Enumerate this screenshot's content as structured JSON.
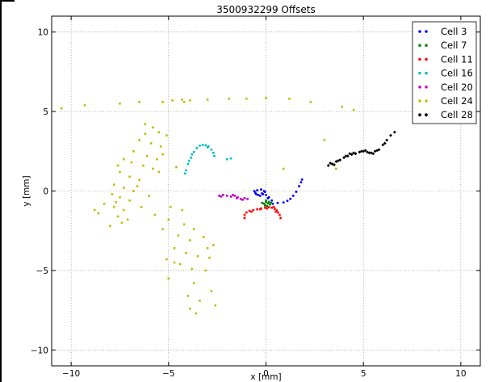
{
  "chart_data": {
    "type": "scatter",
    "title": "3500932299 Offsets",
    "xlabel": "x [mm]",
    "ylabel": "y [mm]",
    "xlim": [
      -11,
      11
    ],
    "ylim": [
      -11,
      11
    ],
    "xticks": [
      -10,
      -5,
      0,
      5,
      10
    ],
    "yticks": [
      -10,
      -5,
      0,
      5,
      10
    ],
    "xtick_labels": [
      "−10",
      "−5",
      "0",
      "5",
      "10"
    ],
    "ytick_labels": [
      "−10",
      "−5",
      "0",
      "5",
      "10"
    ],
    "grid": true,
    "legend": "top-right",
    "series": [
      {
        "name": "Cell 3",
        "color": "#0000ff",
        "marker": "circle",
        "points": [
          [
            -0.6,
            0.0
          ],
          [
            -0.5,
            -0.2
          ],
          [
            -0.3,
            -0.3
          ],
          [
            -0.15,
            -0.2
          ],
          [
            -0.1,
            0.0
          ],
          [
            -0.25,
            0.1
          ],
          [
            -0.45,
            0.05
          ],
          [
            -0.55,
            -0.1
          ],
          [
            -0.4,
            -0.25
          ],
          [
            -0.2,
            -0.15
          ],
          [
            -0.05,
            -0.05
          ],
          [
            0.0,
            -0.25
          ],
          [
            0.1,
            -0.45
          ],
          [
            0.3,
            -0.6
          ],
          [
            0.15,
            -0.4
          ],
          [
            0.35,
            -0.8
          ],
          [
            0.6,
            -0.75
          ],
          [
            0.9,
            -0.72
          ],
          [
            1.1,
            -0.62
          ],
          [
            1.25,
            -0.5
          ],
          [
            1.4,
            -0.3
          ],
          [
            1.55,
            -0.05
          ],
          [
            1.7,
            0.3
          ],
          [
            1.8,
            0.55
          ],
          [
            1.85,
            0.72
          ]
        ]
      },
      {
        "name": "Cell 7",
        "color": "#008000",
        "marker": "square",
        "points": [
          [
            -0.2,
            -0.75
          ],
          [
            -0.1,
            -0.8
          ],
          [
            0.0,
            -0.7
          ],
          [
            0.1,
            -0.78
          ],
          [
            0.2,
            -0.85
          ],
          [
            -0.05,
            -0.9
          ],
          [
            0.15,
            -0.68
          ],
          [
            0.05,
            -0.95
          ],
          [
            0.25,
            -0.75
          ],
          [
            0.0,
            -0.6
          ]
        ]
      },
      {
        "name": "Cell 11",
        "color": "#ff0000",
        "marker": "square",
        "points": [
          [
            -1.1,
            -1.7
          ],
          [
            -1.1,
            -1.5
          ],
          [
            -1.0,
            -1.35
          ],
          [
            -0.85,
            -1.25
          ],
          [
            -0.65,
            -1.2
          ],
          [
            -0.45,
            -1.15
          ],
          [
            -0.25,
            -1.1
          ],
          [
            -0.05,
            -1.05
          ],
          [
            0.15,
            -1.02
          ],
          [
            0.3,
            -1.05
          ],
          [
            0.45,
            -1.12
          ],
          [
            0.55,
            -1.22
          ],
          [
            0.62,
            -1.35
          ],
          [
            0.7,
            -1.5
          ],
          [
            0.75,
            -1.7
          ],
          [
            -0.3,
            -1.15
          ],
          [
            0.05,
            -1.1
          ],
          [
            0.5,
            -1.3
          ],
          [
            -0.75,
            -1.3
          ],
          [
            0.4,
            -1.0
          ]
        ]
      },
      {
        "name": "Cell 16",
        "color": "#00bfbf",
        "marker": "square",
        "points": [
          [
            -4.1,
            1.3
          ],
          [
            -4.0,
            1.7
          ],
          [
            -3.85,
            2.1
          ],
          [
            -3.7,
            2.45
          ],
          [
            -3.55,
            2.7
          ],
          [
            -3.4,
            2.85
          ],
          [
            -3.25,
            2.9
          ],
          [
            -3.1,
            2.88
          ],
          [
            -2.95,
            2.8
          ],
          [
            -2.8,
            2.6
          ],
          [
            -2.7,
            2.4
          ],
          [
            -2.65,
            2.2
          ],
          [
            -3.8,
            2.3
          ],
          [
            -3.0,
            2.75
          ],
          [
            -2.0,
            2.0
          ],
          [
            -1.8,
            2.05
          ],
          [
            -4.15,
            1.1
          ],
          [
            -3.95,
            1.9
          ]
        ]
      },
      {
        "name": "Cell 20",
        "color": "#bf00bf",
        "marker": "square",
        "points": [
          [
            -2.4,
            -0.3
          ],
          [
            -2.2,
            -0.25
          ],
          [
            -2.0,
            -0.3
          ],
          [
            -1.8,
            -0.35
          ],
          [
            -1.6,
            -0.3
          ],
          [
            -1.45,
            -0.4
          ],
          [
            -1.3,
            -0.5
          ],
          [
            -1.2,
            -0.55
          ],
          [
            -1.1,
            -0.45
          ],
          [
            -0.95,
            -0.5
          ],
          [
            -2.3,
            -0.35
          ],
          [
            -1.7,
            -0.25
          ],
          [
            -1.5,
            -0.45
          ]
        ]
      },
      {
        "name": "Cell 24",
        "color": "#bfbf00",
        "marker": "square",
        "points": [
          [
            -10.5,
            5.2
          ],
          [
            -9.3,
            5.4
          ],
          [
            -7.5,
            5.5
          ],
          [
            -6.5,
            5.6
          ],
          [
            -5.3,
            5.6
          ],
          [
            -4.8,
            5.7
          ],
          [
            -4.3,
            5.75
          ],
          [
            -4.2,
            5.6
          ],
          [
            -3.9,
            5.7
          ],
          [
            -3.0,
            5.75
          ],
          [
            -1.9,
            5.8
          ],
          [
            -1.0,
            5.8
          ],
          [
            0.0,
            5.85
          ],
          [
            1.2,
            5.8
          ],
          [
            2.3,
            5.6
          ],
          [
            3.9,
            5.3
          ],
          [
            4.5,
            5.1
          ],
          [
            3.0,
            3.2
          ],
          [
            0.9,
            1.4
          ],
          [
            3.6,
            1.4
          ],
          [
            -6.2,
            4.2
          ],
          [
            -5.8,
            4.0
          ],
          [
            -5.5,
            3.7
          ],
          [
            -5.1,
            3.5
          ],
          [
            -6.5,
            3.2
          ],
          [
            -5.9,
            3.0
          ],
          [
            -5.4,
            2.8
          ],
          [
            -6.8,
            2.5
          ],
          [
            -6.1,
            2.2
          ],
          [
            -5.6,
            2.0
          ],
          [
            -7.3,
            2.0
          ],
          [
            -6.9,
            1.8
          ],
          [
            -6.3,
            1.6
          ],
          [
            -5.8,
            1.4
          ],
          [
            -7.5,
            1.2
          ],
          [
            -7.0,
            0.9
          ],
          [
            -6.5,
            0.7
          ],
          [
            -7.8,
            0.4
          ],
          [
            -7.3,
            0.2
          ],
          [
            -6.8,
            0.0
          ],
          [
            -7.9,
            -0.2
          ],
          [
            -7.5,
            -0.4
          ],
          [
            -7.0,
            -0.6
          ],
          [
            -8.3,
            -0.8
          ],
          [
            -7.8,
            -1.0
          ],
          [
            -7.3,
            -1.2
          ],
          [
            -8.6,
            -1.4
          ],
          [
            -7.6,
            -1.6
          ],
          [
            -7.1,
            -1.8
          ],
          [
            -8.0,
            -2.2
          ],
          [
            -7.4,
            -2.0
          ],
          [
            -6.4,
            -1.0
          ],
          [
            -5.7,
            -1.5
          ],
          [
            -5.0,
            -1.8
          ],
          [
            -4.2,
            -2.1
          ],
          [
            -3.7,
            -2.4
          ],
          [
            -4.5,
            -2.8
          ],
          [
            -3.9,
            -3.1
          ],
          [
            -3.2,
            -2.9
          ],
          [
            -2.7,
            -3.4
          ],
          [
            -4.7,
            -3.6
          ],
          [
            -4.1,
            -3.9
          ],
          [
            -3.5,
            -4.1
          ],
          [
            -2.9,
            -4.2
          ],
          [
            -5.1,
            -4.3
          ],
          [
            -4.4,
            -4.6
          ],
          [
            -3.8,
            -4.9
          ],
          [
            -3.1,
            -5.0
          ],
          [
            -5.0,
            -5.5
          ],
          [
            -3.7,
            -5.8
          ],
          [
            -2.8,
            -6.3
          ],
          [
            -4.0,
            -6.6
          ],
          [
            -3.4,
            -6.9
          ],
          [
            -2.6,
            -7.2
          ],
          [
            -3.9,
            -7.4
          ],
          [
            -3.6,
            -7.7
          ],
          [
            -4.7,
            -4.5
          ],
          [
            -3.0,
            -3.6
          ],
          [
            -5.3,
            -2.4
          ],
          [
            -6.0,
            -0.3
          ],
          [
            -5.3,
            2.3
          ],
          [
            -4.6,
            1.5
          ],
          [
            -4.3,
            -1.2
          ],
          [
            -7.6,
            1.6
          ],
          [
            -6.6,
            0.3
          ],
          [
            -8.8,
            -1.2
          ],
          [
            -6.2,
            3.6
          ],
          [
            -5.5,
            1.2
          ],
          [
            -7.7,
            -0.7
          ],
          [
            -4.9,
            -1.0
          ]
        ]
      },
      {
        "name": "Cell 28",
        "color": "#000000",
        "marker": "diamond",
        "points": [
          [
            3.2,
            1.6
          ],
          [
            3.4,
            1.7
          ],
          [
            3.6,
            1.85
          ],
          [
            3.8,
            1.95
          ],
          [
            4.0,
            2.1
          ],
          [
            4.2,
            2.2
          ],
          [
            4.4,
            2.3
          ],
          [
            4.6,
            2.35
          ],
          [
            4.8,
            2.45
          ],
          [
            5.0,
            2.5
          ],
          [
            5.2,
            2.45
          ],
          [
            5.4,
            2.4
          ],
          [
            5.6,
            2.5
          ],
          [
            5.8,
            2.6
          ],
          [
            6.0,
            2.9
          ],
          [
            6.2,
            3.2
          ],
          [
            6.4,
            3.5
          ],
          [
            6.6,
            3.7
          ],
          [
            3.3,
            1.75
          ],
          [
            3.7,
            1.9
          ],
          [
            4.1,
            2.2
          ],
          [
            4.5,
            2.4
          ],
          [
            4.9,
            2.5
          ],
          [
            5.3,
            2.4
          ],
          [
            5.7,
            2.55
          ],
          [
            6.1,
            3.0
          ],
          [
            3.5,
            1.65
          ],
          [
            4.3,
            2.35
          ],
          [
            5.1,
            2.55
          ],
          [
            5.5,
            2.35
          ]
        ]
      }
    ]
  }
}
